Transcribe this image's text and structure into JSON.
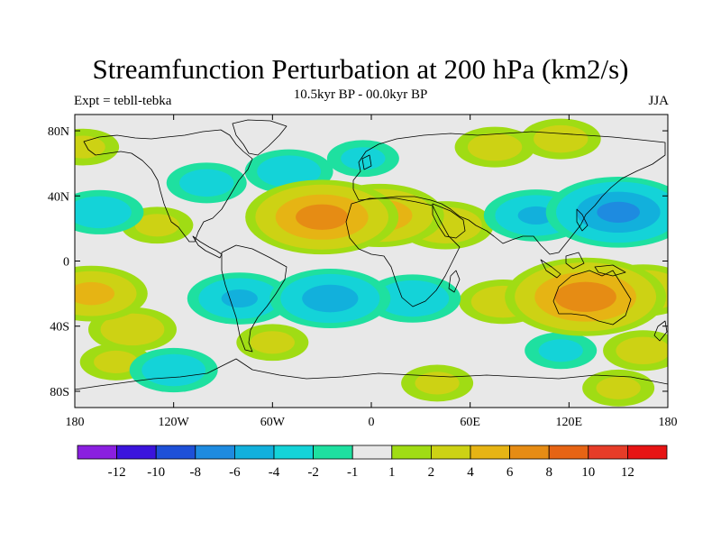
{
  "title": "Streamfunction Perturbation at 200 hPa (km2/s)",
  "subtitle_center": "10.5kyr BP - 00.0kyr BP",
  "subtitle_left": "Expt = tebll-tebka",
  "subtitle_right": "JJA",
  "map": {
    "lon_range": [
      -180,
      180
    ],
    "lat_range": [
      -90,
      90
    ],
    "lat_ticks": [
      {
        "value": 80,
        "label": "80N"
      },
      {
        "value": 40,
        "label": "40N"
      },
      {
        "value": 0,
        "label": "0"
      },
      {
        "value": -40,
        "label": "40S"
      },
      {
        "value": -80,
        "label": "80S"
      }
    ],
    "lon_ticks": [
      {
        "value": -180,
        "label": "180"
      },
      {
        "value": -120,
        "label": "120W"
      },
      {
        "value": -60,
        "label": "60W"
      },
      {
        "value": 0,
        "label": "0"
      },
      {
        "value": 60,
        "label": "60E"
      },
      {
        "value": 120,
        "label": "120E"
      },
      {
        "value": 180,
        "label": "180"
      }
    ],
    "background_color": "#e8e8e8",
    "coastline_color": "#000000"
  },
  "colorbar": {
    "colors": [
      "#8a1fe0",
      "#3b14dc",
      "#1e50d8",
      "#1e8be0",
      "#12b0dc",
      "#14d3d8",
      "#1ee0a0",
      "#e8e8e8",
      "#a0dc14",
      "#cdd214",
      "#e6b414",
      "#e68c14",
      "#e66414",
      "#e63c28",
      "#e61414"
    ],
    "boundary_labels": [
      "-12",
      "-10",
      "-8",
      "-6",
      "-4",
      "-2",
      "-1",
      "1",
      "2",
      "4",
      "6",
      "8",
      "10",
      "12"
    ]
  },
  "chart_data": {
    "type": "heatmap",
    "title": "Streamfunction Perturbation at 200 hPa (km2/s)",
    "levels": [
      -12,
      -10,
      -8,
      -6,
      -4,
      -2,
      -1,
      1,
      2,
      4,
      6,
      8,
      10,
      12
    ],
    "features": [
      {
        "lon": -50,
        "lat": 55,
        "value": -3
      },
      {
        "lon": -100,
        "lat": 48,
        "value": -2.5
      },
      {
        "lon": -5,
        "lat": 63,
        "value": -2
      },
      {
        "lon": -30,
        "lat": 27,
        "value": 7
      },
      {
        "lon": 5,
        "lat": 28,
        "value": 5.5
      },
      {
        "lon": 45,
        "lat": 22,
        "value": 3.5
      },
      {
        "lon": 75,
        "lat": 70,
        "value": 2.5
      },
      {
        "lon": 115,
        "lat": 75,
        "value": 2.5
      },
      {
        "lon": 150,
        "lat": 30,
        "value": -6.5
      },
      {
        "lon": 100,
        "lat": 28,
        "value": -4
      },
      {
        "lon": -165,
        "lat": 30,
        "value": -3
      },
      {
        "lon": -130,
        "lat": 22,
        "value": 2
      },
      {
        "lon": -175,
        "lat": 70,
        "value": 2
      },
      {
        "lon": -170,
        "lat": -20,
        "value": 4.5
      },
      {
        "lon": -145,
        "lat": -42,
        "value": 3
      },
      {
        "lon": -80,
        "lat": -23,
        "value": -4
      },
      {
        "lon": -25,
        "lat": -23,
        "value": -5
      },
      {
        "lon": 25,
        "lat": -23,
        "value": -3.5
      },
      {
        "lon": 130,
        "lat": -22,
        "value": 7.5
      },
      {
        "lon": 80,
        "lat": -25,
        "value": 3
      },
      {
        "lon": 165,
        "lat": -18,
        "value": 4
      },
      {
        "lon": 115,
        "lat": -55,
        "value": -2
      },
      {
        "lon": 165,
        "lat": -55,
        "value": 2.5
      },
      {
        "lon": -120,
        "lat": -67,
        "value": -3
      },
      {
        "lon": -155,
        "lat": -62,
        "value": 2
      },
      {
        "lon": -60,
        "lat": -50,
        "value": 2
      },
      {
        "lon": 40,
        "lat": -75,
        "value": 2
      },
      {
        "lon": 150,
        "lat": -78,
        "value": 2
      }
    ]
  }
}
